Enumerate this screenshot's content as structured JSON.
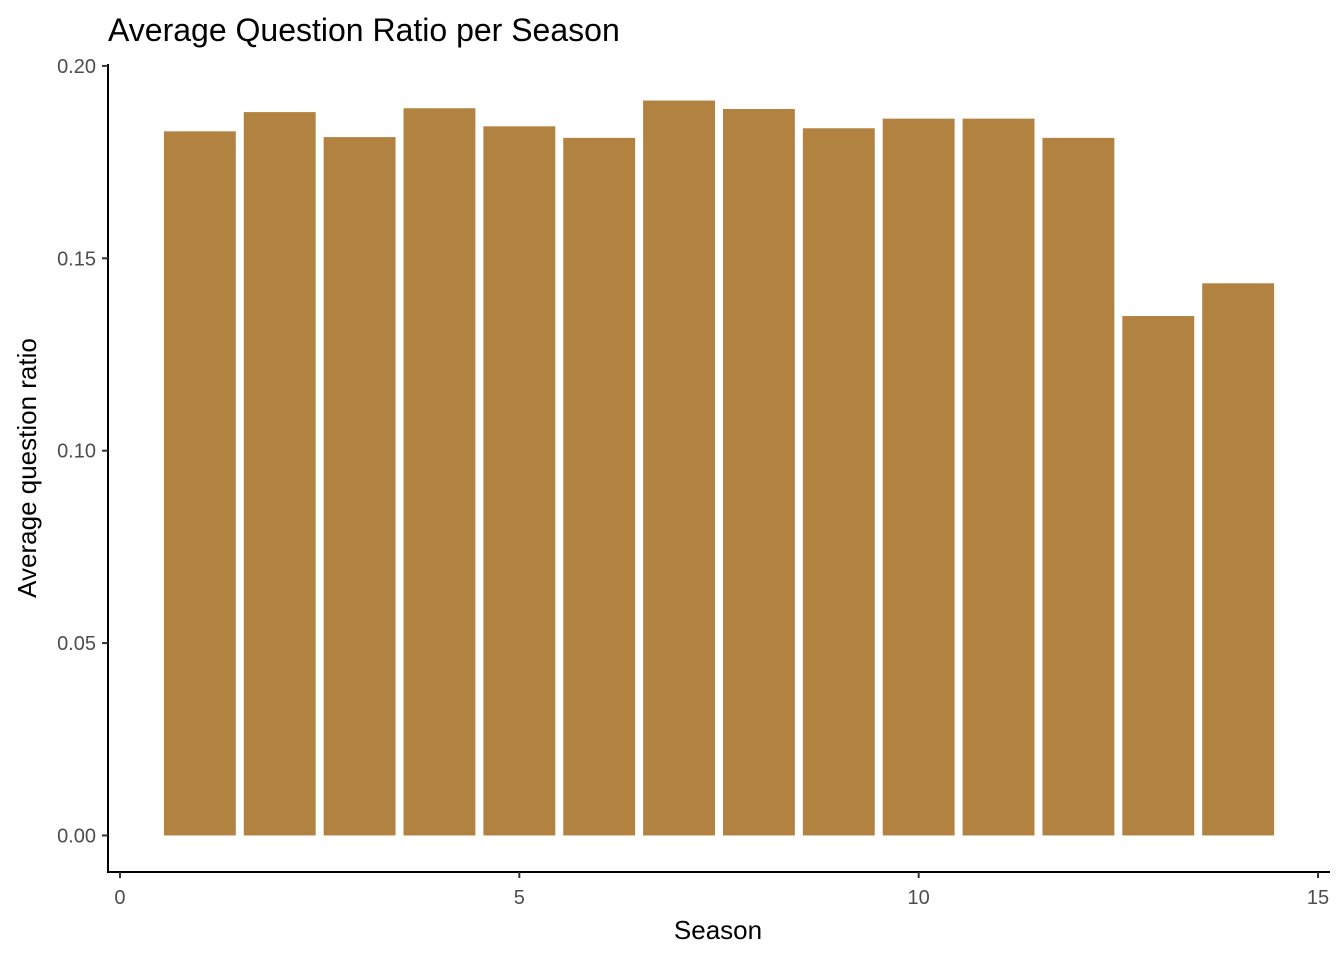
{
  "chart_data": {
    "type": "bar",
    "title": "Average Question Ratio per Season",
    "xlabel": "Season",
    "ylabel": "Average question ratio",
    "x": [
      1,
      2,
      3,
      4,
      5,
      6,
      7,
      8,
      9,
      10,
      11,
      12,
      13,
      14
    ],
    "values": [
      0.183,
      0.188,
      0.1815,
      0.189,
      0.1843,
      0.1813,
      0.191,
      0.1888,
      0.1838,
      0.1863,
      0.1863,
      0.1813,
      0.135,
      0.1435
    ],
    "xlim": [
      -0.15,
      15.15
    ],
    "ylim": [
      -0.0095,
      0.2005
    ],
    "xticks": [
      0,
      5,
      10,
      15
    ],
    "xtick_labels": [
      "0",
      "5",
      "10",
      "15"
    ],
    "yticks": [
      0,
      0.05,
      0.1,
      0.15,
      0.2
    ],
    "ytick_labels": [
      "0.00",
      "0.05",
      "0.10",
      "0.15",
      "0.20"
    ],
    "bar_color": "#b28241",
    "grid": false,
    "legend": "none"
  }
}
